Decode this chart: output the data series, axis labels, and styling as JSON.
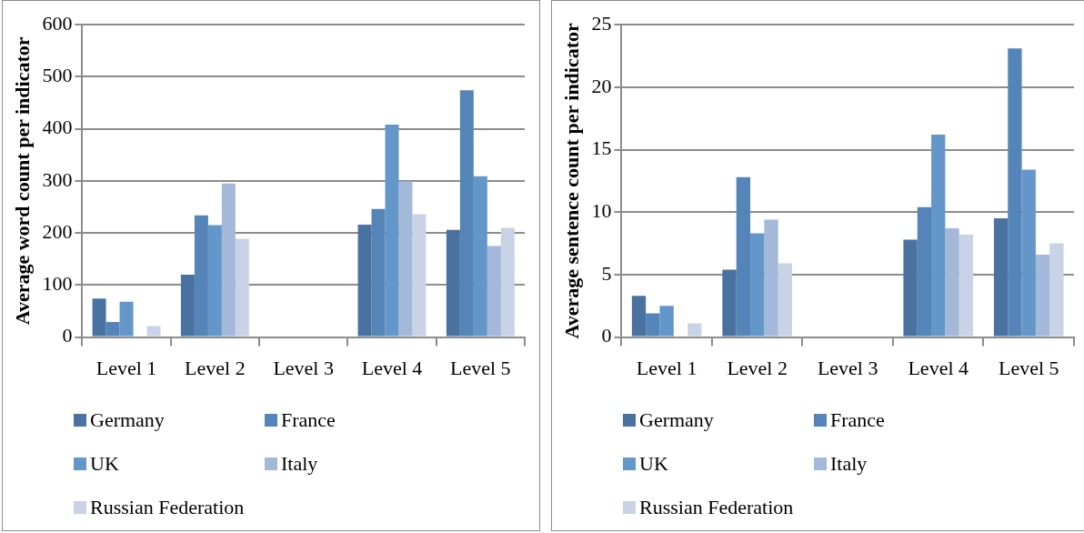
{
  "chart_data": [
    {
      "type": "bar",
      "ylabel": "Average word count per indicator",
      "categories": [
        "Level 1",
        "Level 2",
        "Level 3",
        "Level 4",
        "Level 5"
      ],
      "ylim": [
        0,
        600
      ],
      "yticks": [
        0,
        100,
        200,
        300,
        400,
        500,
        600
      ],
      "grid": "y",
      "legend": "bottom",
      "series": [
        {
          "name": "Germany",
          "color": "#4a72a0",
          "values": [
            74,
            120,
            0,
            216,
            206
          ]
        },
        {
          "name": "France",
          "color": "#5585b8",
          "values": [
            29,
            234,
            0,
            246,
            474
          ]
        },
        {
          "name": "UK",
          "color": "#6397c9",
          "values": [
            68,
            215,
            0,
            408,
            309
          ]
        },
        {
          "name": "Italy",
          "color": "#a4b8d9",
          "values": [
            0,
            295,
            0,
            299,
            175
          ]
        },
        {
          "name": "Russian Federation",
          "color": "#c9d3e6",
          "values": [
            21,
            189,
            0,
            236,
            210
          ]
        }
      ]
    },
    {
      "type": "bar",
      "ylabel": "Average sentence count per indicator",
      "categories": [
        "Level 1",
        "Level 2",
        "Level 3",
        "Level 4",
        "Level 5"
      ],
      "ylim": [
        0,
        25
      ],
      "yticks": [
        0,
        5,
        10,
        15,
        20,
        25
      ],
      "grid": "y",
      "legend": "bottom",
      "series": [
        {
          "name": "Germany",
          "color": "#4a72a0",
          "values": [
            3.3,
            5.4,
            0,
            7.8,
            9.5
          ]
        },
        {
          "name": "France",
          "color": "#5585b8",
          "values": [
            1.9,
            12.8,
            0,
            10.4,
            23.1
          ]
        },
        {
          "name": "UK",
          "color": "#6397c9",
          "values": [
            2.5,
            8.3,
            0,
            16.2,
            13.4
          ]
        },
        {
          "name": "Italy",
          "color": "#a4b8d9",
          "values": [
            0,
            9.4,
            0,
            8.7,
            6.6
          ]
        },
        {
          "name": "Russian Federation",
          "color": "#c9d3e6",
          "values": [
            1.1,
            5.9,
            0,
            8.2,
            7.5
          ]
        }
      ]
    }
  ]
}
